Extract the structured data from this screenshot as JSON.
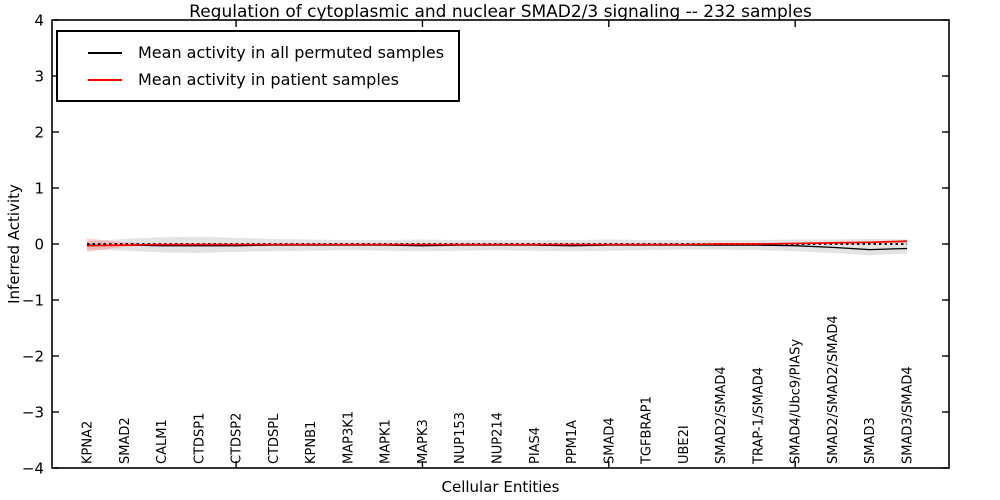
{
  "chart_data": {
    "type": "line",
    "title": "Regulation of cytoplasmic and nuclear SMAD2/3 signaling -- 232 samples",
    "xlabel": "Cellular Entities",
    "ylabel": "Inferred Activity",
    "ylim": [
      -4,
      4
    ],
    "yticks": [
      -4,
      -3,
      -2,
      -1,
      0,
      1,
      2,
      3,
      4
    ],
    "grid": false,
    "legend_position": "upper left",
    "categories": [
      "KPNA2",
      "SMAD2",
      "CALM1",
      "CTDSP1",
      "CTDSP2",
      "CTDSPL",
      "KPNB1",
      "MAP3K1",
      "MAPK1",
      "MAPK3",
      "NUP153",
      "NUP214",
      "PIAS4",
      "PPM1A",
      "SMAD4",
      "TGFBRAP1",
      "UBE2I",
      "SMAD2/SMAD4",
      "TRAP-1/SMAD4",
      "SMAD4/Ubc9/PIASy",
      "SMAD2/SMAD2/SMAD4",
      "SMAD3",
      "SMAD3/SMAD4"
    ],
    "series": [
      {
        "name": "Mean activity in all permuted samples",
        "color": "#000000",
        "style": "solid",
        "values": [
          -0.02,
          -0.02,
          -0.03,
          -0.03,
          -0.03,
          -0.02,
          -0.02,
          -0.02,
          -0.02,
          -0.03,
          -0.02,
          -0.02,
          -0.02,
          -0.03,
          -0.02,
          -0.02,
          -0.02,
          -0.02,
          -0.02,
          -0.03,
          -0.06,
          -0.1,
          -0.08
        ]
      },
      {
        "name": "Mean activity in patient samples",
        "color": "#ff0000",
        "style": "solid",
        "values": [
          -0.03,
          -0.02,
          -0.01,
          -0.01,
          -0.01,
          -0.01,
          -0.01,
          -0.01,
          -0.01,
          -0.01,
          -0.01,
          -0.01,
          -0.01,
          -0.01,
          -0.01,
          -0.01,
          -0.01,
          0.0,
          0.0,
          0.01,
          0.02,
          0.03,
          0.05
        ]
      }
    ],
    "bands": [
      {
        "name": "permuted-samples-range",
        "color": "#d9d9d9",
        "opacity": 0.75,
        "upper": [
          0.05,
          0.09,
          0.12,
          0.13,
          0.11,
          0.09,
          0.08,
          0.07,
          0.07,
          0.08,
          0.07,
          0.07,
          0.07,
          0.07,
          0.08,
          0.07,
          0.07,
          0.07,
          0.07,
          0.08,
          0.08,
          0.09,
          0.08
        ],
        "lower": [
          -0.1,
          -0.12,
          -0.15,
          -0.16,
          -0.14,
          -0.13,
          -0.12,
          -0.11,
          -0.12,
          -0.13,
          -0.12,
          -0.11,
          -0.12,
          -0.13,
          -0.12,
          -0.11,
          -0.1,
          -0.1,
          -0.11,
          -0.13,
          -0.16,
          -0.2,
          -0.17
        ]
      },
      {
        "name": "patient-samples-range",
        "color": "#ff0000",
        "opacity": 0.18,
        "upper": [
          0.1,
          0.03,
          0.0,
          0.0,
          0.0,
          0.0,
          0.0,
          0.0,
          0.0,
          0.0,
          0.0,
          0.0,
          0.0,
          0.0,
          0.0,
          0.0,
          0.0,
          0.01,
          0.01,
          0.02,
          0.04,
          0.05,
          0.07
        ],
        "lower": [
          -0.14,
          -0.05,
          -0.02,
          -0.02,
          -0.02,
          -0.02,
          -0.02,
          -0.02,
          -0.02,
          -0.02,
          -0.02,
          -0.02,
          -0.02,
          -0.02,
          -0.02,
          -0.02,
          -0.02,
          -0.01,
          -0.01,
          0.0,
          0.01,
          0.01,
          0.02
        ]
      }
    ],
    "zero_line": {
      "y": 0,
      "style": "dotted",
      "color": "#000000"
    }
  }
}
